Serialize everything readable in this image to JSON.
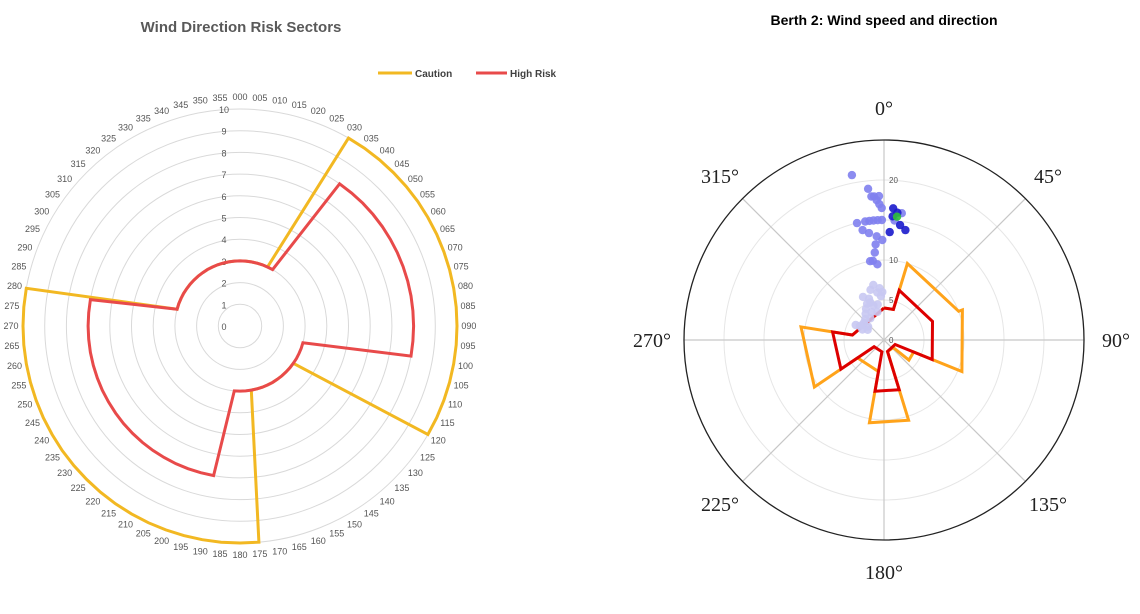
{
  "chart_data": [
    {
      "type": "radar",
      "title": "Wind Direction Risk Sectors",
      "categories": [
        "000",
        "005",
        "010",
        "015",
        "020",
        "025",
        "030",
        "035",
        "040",
        "045",
        "050",
        "055",
        "060",
        "065",
        "070",
        "075",
        "080",
        "085",
        "090",
        "095",
        "100",
        "105",
        "110",
        "115",
        "120",
        "125",
        "130",
        "135",
        "140",
        "145",
        "150",
        "155",
        "160",
        "165",
        "170",
        "175",
        "180",
        "185",
        "190",
        "195",
        "200",
        "205",
        "210",
        "215",
        "220",
        "225",
        "230",
        "235",
        "240",
        "245",
        "250",
        "255",
        "260",
        "265",
        "270",
        "275",
        "280",
        "285",
        "290",
        "295",
        "300",
        "305",
        "310",
        "315",
        "320",
        "325",
        "330",
        "335",
        "340",
        "345",
        "350",
        "355"
      ],
      "radial_axis": {
        "ticks": [
          "0",
          "1",
          "2",
          "3",
          "4",
          "5",
          "6",
          "7",
          "8",
          "9",
          "10"
        ],
        "range": [
          0,
          10
        ]
      },
      "grid": true,
      "legend_position": "top-right",
      "series": [
        {
          "name": "Caution",
          "color": "#f2b822",
          "values": [
            3,
            3,
            3,
            3,
            3,
            3,
            10,
            10,
            10,
            10,
            10,
            10,
            10,
            10,
            10,
            10,
            10,
            10,
            10,
            10,
            10,
            10,
            10,
            10,
            10,
            3,
            3,
            3,
            3,
            3,
            3,
            3,
            3,
            3,
            3,
            10,
            10,
            10,
            10,
            10,
            10,
            10,
            10,
            10,
            10,
            10,
            10,
            10,
            10,
            10,
            10,
            10,
            10,
            10,
            10,
            10,
            10,
            3,
            3,
            3,
            3,
            3,
            3,
            3,
            3,
            3,
            3,
            3,
            3,
            3,
            3,
            3
          ]
        },
        {
          "name": "High Risk",
          "color": "#e84a4a",
          "values": [
            3,
            3,
            3,
            3,
            3,
            3,
            3,
            8,
            8,
            8,
            8,
            8,
            8,
            8,
            8,
            8,
            8,
            8,
            8,
            8,
            8,
            3,
            3,
            3,
            3,
            3,
            3,
            3,
            3,
            3,
            3,
            3,
            3,
            3,
            3,
            3,
            3,
            3,
            7,
            7,
            7,
            7,
            7,
            7,
            7,
            7,
            7,
            7,
            7,
            7,
            7,
            7,
            7,
            7,
            7,
            7,
            7,
            3,
            3,
            3,
            3,
            3,
            3,
            3,
            3,
            3,
            3,
            3,
            3,
            3,
            3,
            3
          ]
        }
      ]
    },
    {
      "type": "scatter",
      "subtype": "polar",
      "title": "Berth 2: Wind speed and direction",
      "direction_labels": [
        "0°",
        "45°",
        "90°",
        "135°",
        "180°",
        "225°",
        "270°",
        "315°"
      ],
      "radial_ticks": [
        "0",
        "5",
        "10",
        "20"
      ],
      "radial_range": [
        0,
        25
      ],
      "grid": true,
      "series": [
        {
          "name": "",
          "type": "line",
          "color": "#ffa31a",
          "points": [
            [
              0,
              4
            ],
            [
              17,
              4
            ],
            [
              17,
              10
            ],
            [
              69,
              10
            ],
            [
              69,
              10.5
            ],
            [
              112,
              10.5
            ],
            [
              112,
              4
            ],
            [
              129,
              4
            ],
            [
              129,
              1.5
            ],
            [
              163,
              1.5
            ],
            [
              163,
              10.5
            ],
            [
              190,
              10.5
            ],
            [
              190,
              4
            ],
            [
              236,
              4
            ],
            [
              236,
              10.5
            ],
            [
              279,
              10.5
            ],
            [
              279,
              4
            ],
            [
              360,
              4
            ]
          ]
        },
        {
          "name": "",
          "type": "line",
          "color": "#dd0000",
          "points": [
            [
              0,
              4
            ],
            [
              17,
              4
            ],
            [
              17,
              6.5
            ],
            [
              69,
              6.5
            ],
            [
              69,
              6.5
            ],
            [
              112,
              6.5
            ],
            [
              112,
              1.5
            ],
            [
              163,
              1.5
            ],
            [
              163,
              6.5
            ],
            [
              190,
              6.5
            ],
            [
              190,
              1.5
            ],
            [
              236,
              1.5
            ],
            [
              236,
              6.5
            ],
            [
              279,
              6.5
            ],
            [
              279,
              4
            ],
            [
              360,
              4
            ]
          ]
        },
        {
          "name": "",
          "type": "scatter",
          "color": "#8080ee",
          "points": [
            [
              349,
              21
            ],
            [
              354,
              19
            ],
            [
              355,
              18
            ],
            [
              356,
              18
            ],
            [
              357,
              17.5
            ],
            [
              358,
              18
            ],
            [
              358,
              17
            ],
            [
              359,
              16.5
            ],
            [
              347,
              15
            ],
            [
              349,
              14
            ],
            [
              351,
              15
            ],
            [
              353,
              15
            ],
            [
              355,
              15
            ],
            [
              357,
              15
            ],
            [
              359,
              15
            ],
            [
              352,
              13.5
            ],
            [
              356,
              13
            ],
            [
              359,
              12.5
            ],
            [
              355,
              12
            ],
            [
              354,
              11
            ],
            [
              350,
              10
            ],
            [
              352,
              10
            ],
            [
              355,
              9.5
            ],
            [
              5,
              15
            ],
            [
              8,
              16
            ]
          ]
        },
        {
          "name": "",
          "type": "scatter",
          "color": "#1a1acc",
          "points": [
            [
              4,
              16.5
            ],
            [
              6,
              16
            ],
            [
              8,
              14.5
            ],
            [
              11,
              14
            ],
            [
              3,
              13.5
            ],
            [
              4,
              15.5
            ]
          ]
        },
        {
          "name": "",
          "type": "scatter",
          "color": "#2fbf3a",
          "points": [
            [
              6,
              15.5
            ]
          ]
        },
        {
          "name": "",
          "type": "scatter",
          "color": "#c8c8f2",
          "points": [
            [
              349,
              7
            ],
            [
              345,
              6.5
            ],
            [
              352,
              6
            ],
            [
              355,
              6.5
            ],
            [
              340,
              5.5
            ],
            [
              335,
              5
            ],
            [
              330,
              4.5
            ],
            [
              325,
              4
            ],
            [
              318,
              3.5
            ],
            [
              310,
              3.3
            ],
            [
              305,
              3.2
            ],
            [
              300,
              3.5
            ],
            [
              298,
              4
            ],
            [
              296,
              3
            ],
            [
              358,
              6
            ],
            [
              343,
              4.5
            ],
            [
              336,
              3.8
            ],
            [
              328,
              3.2
            ],
            [
              310,
              2.6
            ],
            [
              302,
              2.4
            ],
            [
              340,
              5
            ],
            [
              350,
              4.5
            ],
            [
              334,
              6
            ],
            [
              356,
              5.5
            ],
            [
              347,
              3.6
            ]
          ]
        }
      ]
    }
  ]
}
